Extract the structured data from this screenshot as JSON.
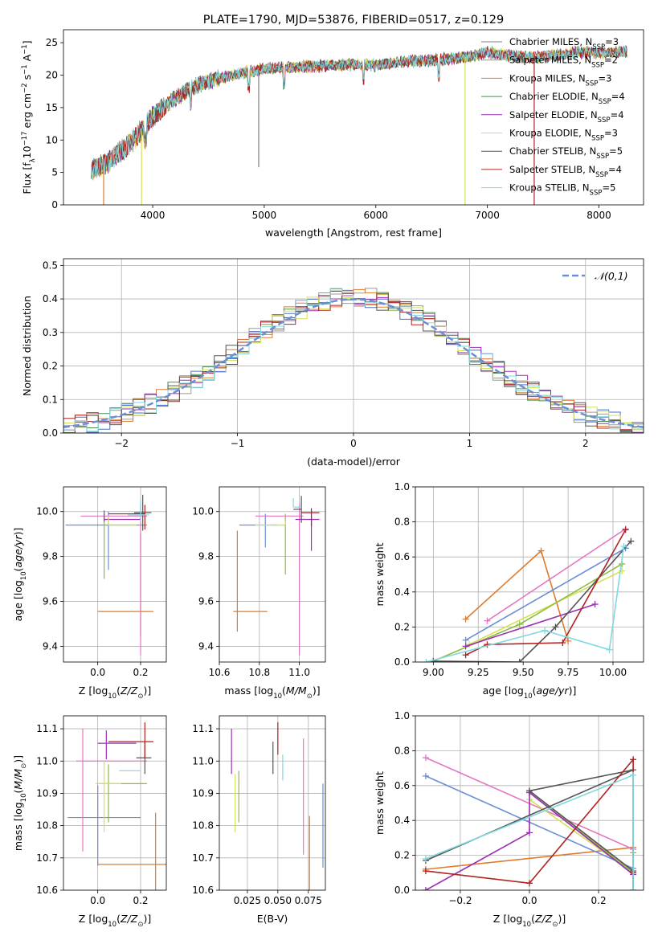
{
  "figure": {
    "title": "PLATE=1790, MJD=53876, FIBERID=0517, z=0.129"
  },
  "colors": {
    "Chabrier MILES": "#7f7f7f",
    "Salpeter MILES": "#999999",
    "Kroupa MILES": "#e07b2a",
    "Chabrier ELODIE": "#4f8f4f",
    "Salpeter ELODIE": "#9b30b4",
    "Kroupa ELODIE": "#d4e157",
    "Chabrier STELIB": "#555555",
    "Salpeter STELIB": "#b22222",
    "Kroupa STELIB": "#80d8e0",
    "pink": "#e377c2",
    "blue": "#6a8fd8",
    "olive": "#8fbc3f",
    "gaussian": "#6a8fd8"
  },
  "chart_data": [
    {
      "id": "spectrum",
      "type": "line",
      "title": "PLATE=1790, MJD=53876, FIBERID=0517, z=0.129",
      "xlabel": "wavelength [Angstrom, rest frame]",
      "ylabel": "Flux [fλ10⁻¹⁷ erg cm⁻² s⁻¹ A⁻¹]",
      "xlim": [
        3200,
        8400
      ],
      "ylim": [
        0,
        27
      ],
      "xticks": [
        4000,
        5000,
        6000,
        7000,
        8000
      ],
      "yticks": [
        0,
        5,
        10,
        15,
        20,
        25
      ],
      "grid": false,
      "legend": "top-right",
      "legend_entries": [
        "Chabrier MILES, N_SSP=3",
        "Salpeter MILES, N_SSP=2",
        "Kroupa MILES, N_SSP=3",
        "Chabrier ELODIE, N_SSP=4",
        "Salpeter ELODIE, N_SSP=4",
        "Kroupa ELODIE, N_SSP=3",
        "Chabrier STELIB, N_SSP=5",
        "Salpeter STELIB, N_SSP=4",
        "Kroupa STELIB, N_SSP=5"
      ],
      "series_colors": [
        "#7f7f7f",
        "#999999",
        "#e07b2a",
        "#4f8f4f",
        "#9b30b4",
        "#d4e157",
        "#555555",
        "#b22222",
        "#80d8e0"
      ],
      "continuum": {
        "x": [
          3450,
          3600,
          3800,
          4000,
          4200,
          4400,
          4600,
          4800,
          5000,
          5200,
          5400,
          5600,
          5800,
          6000,
          6200,
          6400,
          6600,
          6800,
          7000,
          7200,
          7400,
          7600,
          7800,
          8000,
          8200
        ],
        "y": [
          5.5,
          6.5,
          9.5,
          13.5,
          16.5,
          18.5,
          19.5,
          20.3,
          21,
          21.2,
          21.3,
          21.5,
          21.6,
          21.5,
          22,
          22.2,
          22.4,
          22.8,
          23.5,
          23,
          22.7,
          23,
          23.5,
          23.4,
          23.6
        ]
      },
      "drops": [
        {
          "x": 3560,
          "color": "#e07b2a"
        },
        {
          "x": 3900,
          "color": "#d4e157"
        },
        {
          "x": 4950,
          "color": "#7f7f7f",
          "to": 5.8
        },
        {
          "x": 6800,
          "color": "#d4e157"
        },
        {
          "x": 7420,
          "color": "#b22222"
        }
      ]
    },
    {
      "id": "residuals",
      "type": "histogram",
      "xlabel": "(data-model)/error",
      "ylabel": "Normed distribution",
      "xlim": [
        -2.5,
        2.5
      ],
      "ylim": [
        0,
        0.52
      ],
      "xticks": [
        -2,
        -1,
        0,
        1,
        2
      ],
      "yticks": [
        0.0,
        0.1,
        0.2,
        0.3,
        0.4,
        0.5
      ],
      "grid": true,
      "legend": "top-right",
      "gaussian_label": "𝒩(0,1)",
      "bin_width": 0.1
    },
    {
      "id": "age_vs_Z",
      "type": "errorbar",
      "xlabel": "Z [log10(Z/Z⊙)]",
      "ylabel": "age  [log10(age/yr)]",
      "xlim": [
        -0.16,
        0.32
      ],
      "ylim": [
        9.33,
        10.11
      ],
      "xticks": [
        0.0,
        0.2
      ],
      "yticks": [
        9.4,
        9.6,
        9.8,
        10.0
      ],
      "grid": true,
      "points": [
        {
          "x": 0.2,
          "y": 9.555,
          "xerr": [
            0.2,
            0.06
          ],
          "yerr": [
            0.11,
            0.35
          ],
          "color": "#e07b2a"
        },
        {
          "x": 0.05,
          "y": 9.94,
          "xerr": [
            0.2,
            0.18
          ],
          "yerr": [
            0.2,
            0.06
          ],
          "color": "#6a8fd8"
        },
        {
          "x": 0.03,
          "y": 9.94,
          "xerr": [
            0.0,
            0.2
          ],
          "yerr": [
            0.24,
            0.05
          ],
          "color": "#8fbc3f"
        },
        {
          "x": 0.2,
          "y": 9.98,
          "xerr": [
            0.28,
            0.03
          ],
          "yerr": [
            0.62,
            0.05
          ],
          "color": "#e377c2"
        },
        {
          "x": 0.03,
          "y": 9.965,
          "xerr": [
            0.0,
            0.17
          ],
          "yerr": [
            0.01,
            0.04
          ],
          "color": "#9b30b4"
        },
        {
          "x": 0.05,
          "y": 9.94,
          "xerr": [
            0.0,
            0.13
          ],
          "yerr": [
            0.0,
            0.04
          ],
          "color": "#d4e157"
        },
        {
          "x": 0.21,
          "y": 9.995,
          "xerr": [
            0.04,
            0.04
          ],
          "yerr": [
            0.08,
            0.08
          ],
          "color": "#555555"
        },
        {
          "x": 0.22,
          "y": 9.99,
          "xerr": [
            0.17,
            0.0
          ],
          "yerr": [
            0.07,
            0.04
          ],
          "color": "#b22222"
        },
        {
          "x": 0.2,
          "y": 9.985,
          "xerr": [
            0.06,
            0.04
          ],
          "yerr": [
            0.03,
            0.07
          ],
          "color": "#80d8e0"
        }
      ]
    },
    {
      "id": "age_vs_mass",
      "type": "errorbar",
      "xlabel": "mass [log10(M/M⊙)]",
      "ylabel": "",
      "xlim": [
        10.6,
        11.13
      ],
      "ylim": [
        9.33,
        10.11
      ],
      "xticks": [
        10.6,
        10.8,
        11.0
      ],
      "yticks": [
        9.4,
        9.6,
        9.8,
        10.0
      ],
      "grid": true,
      "points": [
        {
          "x": 10.69,
          "y": 9.555,
          "xerr": [
            0.02,
            0.15
          ],
          "yerr": [
            0.09,
            0.36
          ],
          "color": "#e07b2a"
        },
        {
          "x": 10.83,
          "y": 9.94,
          "xerr": [
            0.13,
            0.06
          ],
          "yerr": [
            0.1,
            0.05
          ],
          "color": "#6a8fd8"
        },
        {
          "x": 10.93,
          "y": 9.94,
          "xerr": [
            0.06,
            0.0
          ],
          "yerr": [
            0.22,
            0.05
          ],
          "color": "#8fbc3f"
        },
        {
          "x": 11.0,
          "y": 9.98,
          "xerr": [
            0.22,
            0.02
          ],
          "yerr": [
            0.62,
            0.05
          ],
          "color": "#e377c2"
        },
        {
          "x": 11.06,
          "y": 9.965,
          "xerr": [
            0.08,
            0.04
          ],
          "yerr": [
            0.14,
            0.04
          ],
          "color": "#9b30b4"
        },
        {
          "x": 10.93,
          "y": 9.94,
          "xerr": [
            0.15,
            0.0
          ],
          "yerr": [
            0.0,
            0.02
          ],
          "color": "#d4e157"
        },
        {
          "x": 11.01,
          "y": 10.01,
          "xerr": [
            0.04,
            0.0
          ],
          "yerr": [
            0.06,
            0.06
          ],
          "color": "#555555"
        },
        {
          "x": 11.06,
          "y": 9.995,
          "xerr": [
            0.05,
            0.04
          ],
          "yerr": [
            0.06,
            0.02
          ],
          "color": "#b22222"
        },
        {
          "x": 10.97,
          "y": 10.02,
          "xerr": [
            0.0,
            0.04
          ],
          "yerr": [
            0.0,
            0.04
          ],
          "color": "#80d8e0"
        }
      ]
    },
    {
      "id": "weight_vs_age",
      "type": "line",
      "xlabel": "age  [log10(age/yr)]",
      "ylabel": "mass weight",
      "xlim": [
        8.9,
        10.17
      ],
      "ylim": [
        0,
        1
      ],
      "xticks": [
        9.0,
        9.25,
        9.5,
        9.75,
        10.0
      ],
      "yticks": [
        0.0,
        0.2,
        0.4,
        0.6,
        0.8,
        1.0
      ],
      "grid": true,
      "series": [
        {
          "x": [
            9.18,
            9.6,
            9.75
          ],
          "y": [
            0.245,
            0.635,
            0.12
          ],
          "color": "#e07b2a"
        },
        {
          "x": [
            9.3,
            10.07
          ],
          "y": [
            0.235,
            0.76
          ],
          "color": "#e377c2"
        },
        {
          "x": [
            9.18,
            10.07
          ],
          "y": [
            0.125,
            0.65
          ],
          "color": "#6a8fd8"
        },
        {
          "x": [
            9.2,
            10.05
          ],
          "y": [
            0.1,
            0.52
          ],
          "color": "#d4e157"
        },
        {
          "x": [
            9.0,
            9.48,
            10.05
          ],
          "y": [
            0.005,
            0.215,
            0.56
          ],
          "color": "#8fbc3f"
        },
        {
          "x": [
            9.18,
            9.9
          ],
          "y": [
            0.09,
            0.33
          ],
          "color": "#9b30b4"
        },
        {
          "x": [
            9.0,
            9.48,
            9.68,
            10.1
          ],
          "y": [
            0.005,
            0.0,
            0.2,
            0.69
          ],
          "color": "#555555"
        },
        {
          "x": [
            9.18,
            9.3,
            9.72,
            10.07
          ],
          "y": [
            0.04,
            0.1,
            0.11,
            0.755
          ],
          "color": "#b22222"
        },
        {
          "x": [
            8.96,
            9.62,
            9.98,
            10.06
          ],
          "y": [
            0.0,
            0.18,
            0.07,
            0.66
          ],
          "color": "#80d8e0"
        }
      ]
    },
    {
      "id": "mass_vs_Z",
      "type": "errorbar",
      "xlabel": "Z [log10(Z/Z⊙)]",
      "ylabel": "mass [log10(M/M⊙)]",
      "xlim": [
        -0.16,
        0.32
      ],
      "ylim": [
        10.6,
        11.14
      ],
      "xticks": [
        0.0,
        0.2
      ],
      "yticks": [
        10.6,
        10.7,
        10.8,
        10.9,
        11.0,
        11.1
      ],
      "grid": true,
      "points": [
        {
          "x": 0.27,
          "y": 10.68,
          "xerr": [
            0.27,
            0.05
          ],
          "yerr": [
            0.1,
            0.16
          ],
          "color": "#e07b2a"
        },
        {
          "x": 0.0,
          "y": 10.825,
          "xerr": [
            0.14,
            0.2
          ],
          "yerr": [
            0.15,
            0.1
          ],
          "color": "#6a8fd8"
        },
        {
          "x": 0.05,
          "y": 10.93,
          "xerr": [
            0.05,
            0.18
          ],
          "yerr": [
            0.12,
            0.06
          ],
          "color": "#8fbc3f"
        },
        {
          "x": -0.07,
          "y": 11.0,
          "xerr": [
            0.03,
            0.3
          ],
          "yerr": [
            0.28,
            0.1
          ],
          "color": "#e377c2"
        },
        {
          "x": 0.04,
          "y": 11.055,
          "xerr": [
            0.04,
            0.14
          ],
          "yerr": [
            0.05,
            0.04
          ],
          "color": "#9b30b4"
        },
        {
          "x": 0.03,
          "y": 10.93,
          "xerr": [
            0.04,
            0.08
          ],
          "yerr": [
            0.15,
            0.07
          ],
          "color": "#d4e157"
        },
        {
          "x": 0.22,
          "y": 11.01,
          "xerr": [
            0.04,
            0.03
          ],
          "yerr": [
            0.05,
            0.05
          ],
          "color": "#555555"
        },
        {
          "x": 0.22,
          "y": 11.06,
          "xerr": [
            0.17,
            0.04
          ],
          "yerr": [
            0.05,
            0.06
          ],
          "color": "#b22222"
        },
        {
          "x": 0.1,
          "y": 10.97,
          "xerr": [
            0.0,
            0.1
          ],
          "yerr": [
            0.0,
            0.0
          ],
          "color": "#80d8e0"
        }
      ]
    },
    {
      "id": "mass_vs_ebv",
      "type": "errorbar",
      "xlabel": "E(B-V)",
      "ylabel": "",
      "xlim": [
        0.002,
        0.089
      ],
      "ylim": [
        10.6,
        11.14
      ],
      "xticks": [
        0.025,
        0.05,
        0.075
      ],
      "xticklabels": [
        "0.025",
        "0.050",
        "0.075"
      ],
      "yticks": [
        10.6,
        10.7,
        10.8,
        10.9,
        11.0,
        11.1
      ],
      "grid": true,
      "points": [
        {
          "x": 0.012,
          "y": 11.03,
          "xerr": [
            0,
            0
          ],
          "yerr": [
            0.07,
            0.07
          ],
          "color": "#9b30b4"
        },
        {
          "x": 0.015,
          "y": 10.87,
          "xerr": [
            0,
            0
          ],
          "yerr": [
            0.09,
            0.09
          ],
          "color": "#d4e157"
        },
        {
          "x": 0.018,
          "y": 10.89,
          "xerr": [
            0,
            0
          ],
          "yerr": [
            0.08,
            0.08
          ],
          "color": "#8fbc3f"
        },
        {
          "x": 0.046,
          "y": 11.01,
          "xerr": [
            0,
            0
          ],
          "yerr": [
            0.05,
            0.05
          ],
          "color": "#555555"
        },
        {
          "x": 0.05,
          "y": 11.07,
          "xerr": [
            0,
            0
          ],
          "yerr": [
            0.05,
            0.05
          ],
          "color": "#b22222"
        },
        {
          "x": 0.054,
          "y": 10.98,
          "xerr": [
            0,
            0
          ],
          "yerr": [
            0.04,
            0.04
          ],
          "color": "#80d8e0"
        },
        {
          "x": 0.071,
          "y": 10.89,
          "xerr": [
            0,
            0
          ],
          "yerr": [
            0.18,
            0.18
          ],
          "color": "#e377c2"
        },
        {
          "x": 0.076,
          "y": 10.68,
          "xerr": [
            0,
            0
          ],
          "yerr": [
            0.15,
            0.15
          ],
          "color": "#e07b2a"
        },
        {
          "x": 0.087,
          "y": 10.8,
          "xerr": [
            0,
            0
          ],
          "yerr": [
            0.13,
            0.13
          ],
          "color": "#6a8fd8"
        }
      ]
    },
    {
      "id": "weight_vs_Z",
      "type": "line",
      "xlabel": "Z [log10(Z/Z⊙)]",
      "ylabel": "mass weight",
      "xlim": [
        -0.33,
        0.33
      ],
      "ylim": [
        0,
        1
      ],
      "xticks": [
        -0.2,
        0.0,
        0.2
      ],
      "xticklabels": [
        "−0.2",
        "0.0",
        "0.2"
      ],
      "yticks": [
        0.0,
        0.2,
        0.4,
        0.6,
        0.8,
        1.0
      ],
      "grid": true,
      "series": [
        {
          "x": [
            -0.3,
            0.3
          ],
          "y": [
            0.12,
            0.245
          ],
          "color": "#e07b2a"
        },
        {
          "x": [
            -0.3,
            0.3
          ],
          "y": [
            0.76,
            0.235
          ],
          "color": "#e377c2"
        },
        {
          "x": [
            -0.3,
            0.3
          ],
          "y": [
            0.655,
            0.125
          ],
          "color": "#6a8fd8"
        },
        {
          "x": [
            0.0,
            0.3,
            0.3
          ],
          "y": [
            0.52,
            0.1,
            0.0
          ],
          "color": "#d4e157"
        },
        {
          "x": [
            0.0,
            0.3,
            0.3
          ],
          "y": [
            0.56,
            0.1,
            0.215
          ],
          "color": "#8fbc3f"
        },
        {
          "x": [
            -0.3,
            0.0,
            0.0,
            0.3,
            0.3
          ],
          "y": [
            0.0,
            0.33,
            0.56,
            0.09,
            0.0
          ],
          "color": "#9b30b4"
        },
        {
          "x": [
            -0.3,
            0.3,
            0.0,
            0.3,
            0.3
          ],
          "y": [
            0.17,
            0.69,
            0.57,
            0.11,
            0.0
          ],
          "color": "#555555"
        },
        {
          "x": [
            -0.3,
            0.0,
            0.3,
            0.3
          ],
          "y": [
            0.11,
            0.04,
            0.75,
            0.1
          ],
          "color": "#b22222"
        },
        {
          "x": [
            -0.3,
            0.3,
            0.3
          ],
          "y": [
            0.18,
            0.66,
            0.0
          ],
          "color": "#80d8e0"
        }
      ]
    }
  ]
}
